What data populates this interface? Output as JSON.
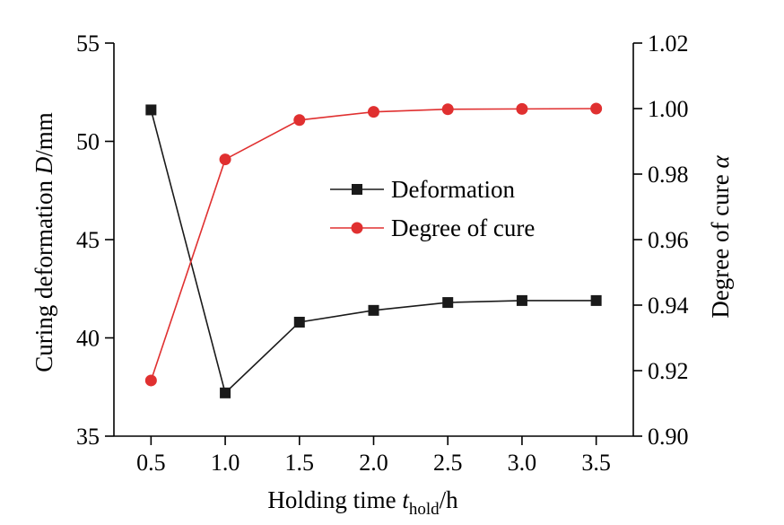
{
  "chart_data": {
    "type": "line",
    "x": [
      0.5,
      1.0,
      1.5,
      2.0,
      2.5,
      3.0,
      3.5
    ],
    "x_ticks": [
      "0.5",
      "1.0",
      "1.5",
      "2.0",
      "2.5",
      "3.0",
      "3.5"
    ],
    "xlim": [
      0.25,
      3.75
    ],
    "xlabel": {
      "pre": "Holding time ",
      "var": "t",
      "sub": "hold",
      "post": "/h"
    },
    "y_left": {
      "label": {
        "pre": "Curing deformation ",
        "var": "D",
        "post": "/mm"
      },
      "lim": [
        35,
        55
      ],
      "ticks": [
        "35",
        "40",
        "45",
        "50",
        "55"
      ]
    },
    "y_right": {
      "label": {
        "pre": "Degree of cure ",
        "var": "α"
      },
      "lim": [
        0.9,
        1.02
      ],
      "ticks": [
        "0.90",
        "0.92",
        "0.94",
        "0.96",
        "0.98",
        "1.00",
        "1.02"
      ]
    },
    "series": [
      {
        "name": "Deformation",
        "axis": "left",
        "color": "#1a1a1a",
        "marker": "square",
        "values": [
          51.6,
          37.2,
          40.8,
          41.4,
          41.8,
          41.9,
          41.9
        ]
      },
      {
        "name": "Degree of cure",
        "axis": "right",
        "color": "#e03030",
        "marker": "circle",
        "values": [
          0.917,
          0.9845,
          0.9965,
          0.999,
          0.9998,
          0.9999,
          1.0
        ]
      }
    ],
    "legend_position": "center-right",
    "grid": false
  }
}
